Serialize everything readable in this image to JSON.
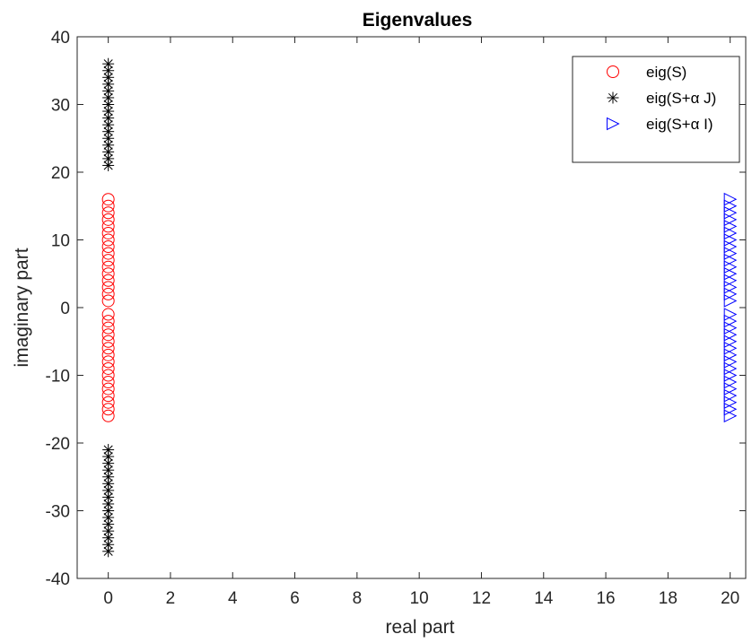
{
  "chart_data": {
    "type": "scatter",
    "title": "Eigenvalues",
    "xlabel": "real part",
    "ylabel": "imaginary part",
    "xlim": [
      -1,
      20.5
    ],
    "ylim": [
      -40,
      40
    ],
    "xticks": [
      0,
      2,
      4,
      6,
      8,
      10,
      12,
      14,
      16,
      18,
      20
    ],
    "yticks": [
      -40,
      -30,
      -20,
      -10,
      0,
      10,
      20,
      30,
      40
    ],
    "grid": false,
    "legend_position": "top-right",
    "series": [
      {
        "name": "eig(S)",
        "marker": "circle",
        "color": "#ff0000",
        "x": [
          0,
          0,
          0,
          0,
          0,
          0,
          0,
          0,
          0,
          0,
          0,
          0,
          0,
          0,
          0,
          0,
          0,
          0,
          0,
          0,
          0,
          0,
          0,
          0,
          0,
          0,
          0,
          0,
          0,
          0,
          0,
          0
        ],
        "y": [
          -16,
          -15,
          -14,
          -13,
          -12,
          -11,
          -10,
          -9,
          -8,
          -7,
          -6,
          -5,
          -4,
          -3,
          -2,
          -1,
          1,
          2,
          3,
          4,
          5,
          6,
          7,
          8,
          9,
          10,
          11,
          12,
          13,
          14,
          15,
          16
        ]
      },
      {
        "name": "eig(S+α J)",
        "marker": "asterisk",
        "color": "#000000",
        "x": [
          0,
          0,
          0,
          0,
          0,
          0,
          0,
          0,
          0,
          0,
          0,
          0,
          0,
          0,
          0,
          0,
          0,
          0,
          0,
          0,
          0,
          0,
          0,
          0,
          0,
          0,
          0,
          0,
          0,
          0,
          0,
          0
        ],
        "y": [
          -36,
          -35,
          -34,
          -33,
          -32,
          -31,
          -30,
          -29,
          -28,
          -27,
          -26,
          -25,
          -24,
          -23,
          -22,
          -21,
          21,
          22,
          23,
          24,
          25,
          26,
          27,
          28,
          29,
          30,
          31,
          32,
          33,
          34,
          35,
          36
        ]
      },
      {
        "name": "eig(S+α I)",
        "marker": "triangle-right",
        "color": "#0000ff",
        "x": [
          20,
          20,
          20,
          20,
          20,
          20,
          20,
          20,
          20,
          20,
          20,
          20,
          20,
          20,
          20,
          20,
          20,
          20,
          20,
          20,
          20,
          20,
          20,
          20,
          20,
          20,
          20,
          20,
          20,
          20,
          20,
          20
        ],
        "y": [
          -16,
          -15,
          -14,
          -13,
          -12,
          -11,
          -10,
          -9,
          -8,
          -7,
          -6,
          -5,
          -4,
          -3,
          -2,
          -1,
          1,
          2,
          3,
          4,
          5,
          6,
          7,
          8,
          9,
          10,
          11,
          12,
          13,
          14,
          15,
          16
        ]
      }
    ]
  }
}
